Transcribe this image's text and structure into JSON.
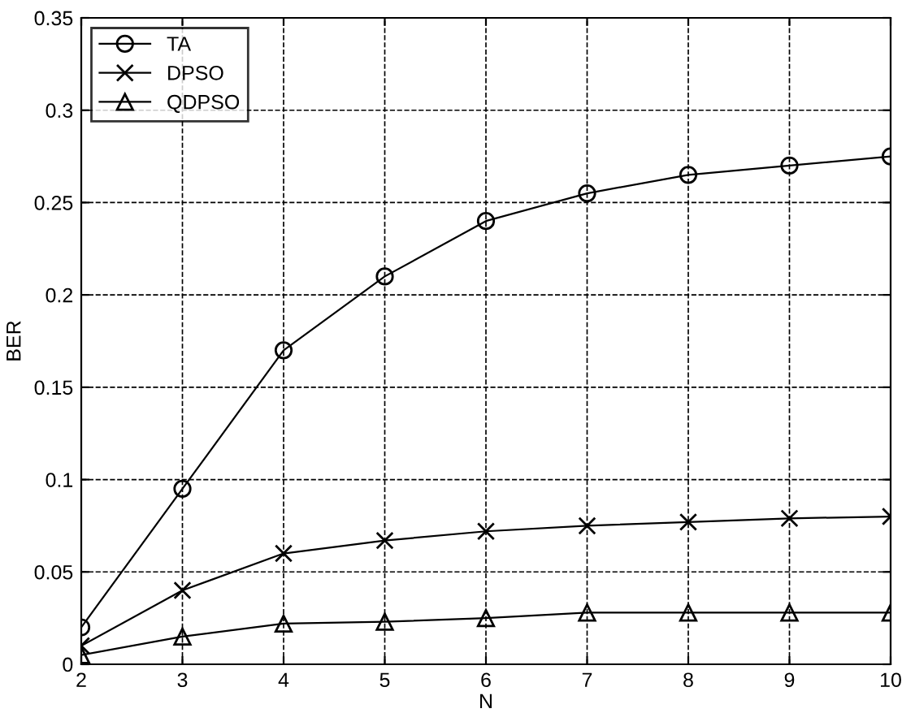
{
  "chart_data": {
    "type": "line",
    "xlabel": "N",
    "ylabel": "BER",
    "x": [
      2,
      3,
      4,
      5,
      6,
      7,
      8,
      9,
      10
    ],
    "series": [
      {
        "name": "TA",
        "color": "#000000",
        "marker": "circle",
        "values": [
          0.02,
          0.095,
          0.17,
          0.21,
          0.24,
          0.255,
          0.265,
          0.27,
          0.275
        ]
      },
      {
        "name": "DPSO",
        "color": "#000000",
        "marker": "cross",
        "values": [
          0.01,
          0.04,
          0.06,
          0.067,
          0.072,
          0.075,
          0.077,
          0.079,
          0.08
        ]
      },
      {
        "name": "QDPSO",
        "color": "#000000",
        "marker": "triangle",
        "values": [
          0.005,
          0.015,
          0.022,
          0.023,
          0.025,
          0.028,
          0.028,
          0.028,
          0.028
        ]
      }
    ],
    "xlim": [
      2,
      10
    ],
    "xticks": [
      2,
      3,
      4,
      5,
      6,
      7,
      8,
      9,
      10
    ],
    "ylim": [
      0,
      0.35
    ],
    "yticks": [
      0,
      0.05,
      0.1,
      0.15,
      0.2,
      0.25,
      0.3,
      0.35
    ],
    "grid": true,
    "legend": "top left",
    "line_style": "solid"
  }
}
